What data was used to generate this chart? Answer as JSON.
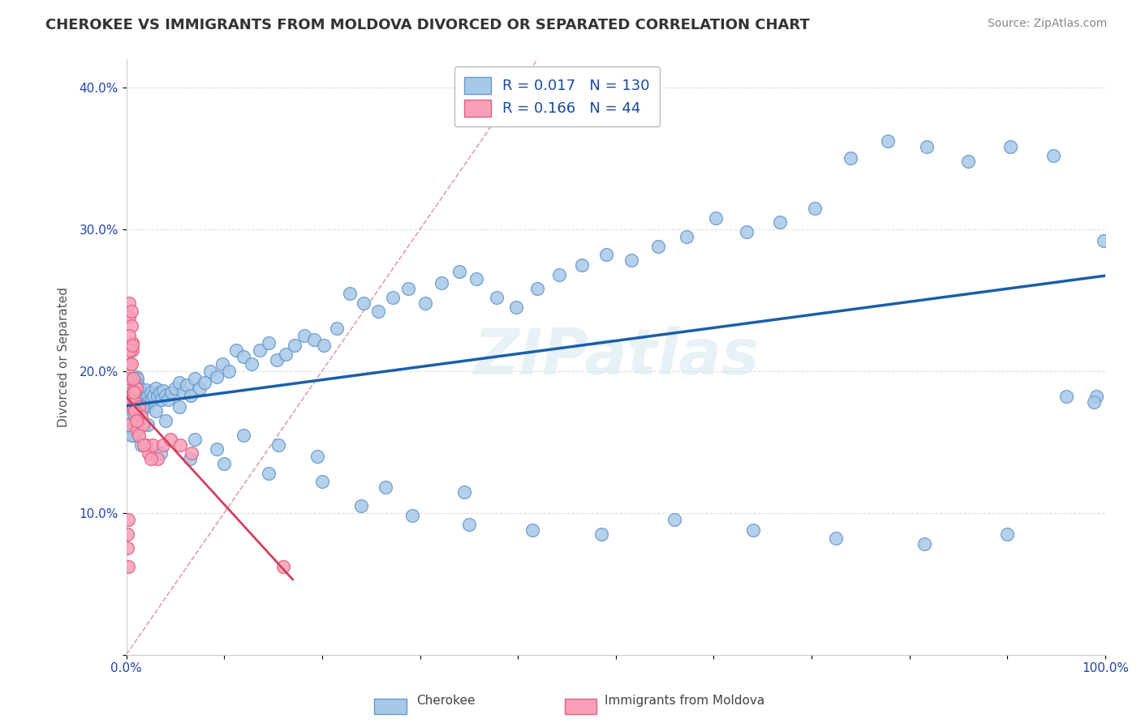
{
  "title": "CHEROKEE VS IMMIGRANTS FROM MOLDOVA DIVORCED OR SEPARATED CORRELATION CHART",
  "source": "Source: ZipAtlas.com",
  "ylabel": "Divorced or Separated",
  "xlim": [
    0.0,
    1.0
  ],
  "ylim": [
    0.0,
    0.42
  ],
  "xticks": [
    0.0,
    0.1,
    0.2,
    0.3,
    0.4,
    0.5,
    0.6,
    0.7,
    0.8,
    0.9,
    1.0
  ],
  "xtick_labels": [
    "0.0%",
    "",
    "",
    "",
    "",
    "",
    "",
    "",
    "",
    "",
    "100.0%"
  ],
  "yticks": [
    0.0,
    0.1,
    0.2,
    0.3,
    0.4
  ],
  "ytick_labels": [
    "",
    "10.0%",
    "20.0%",
    "30.0%",
    "40.0%"
  ],
  "cherokee_R": 0.017,
  "cherokee_N": 130,
  "moldova_R": 0.166,
  "moldova_N": 44,
  "cherokee_color": "#a8c8e8",
  "cherokee_edge": "#6699cc",
  "moldova_color": "#f8a0b8",
  "moldova_edge": "#e06080",
  "cherokee_trend_color": "#1a5fa8",
  "moldova_trend_color": "#d04060",
  "legend_label_cherokee": "Cherokee",
  "legend_label_moldova": "Immigrants from Moldova",
  "watermark": "ZIPatlas",
  "background_color": "#ffffff",
  "grid_color": "#e0e0e0",
  "cherokee_x": [
    0.003,
    0.004,
    0.004,
    0.005,
    0.005,
    0.006,
    0.006,
    0.007,
    0.007,
    0.008,
    0.008,
    0.009,
    0.009,
    0.01,
    0.01,
    0.011,
    0.011,
    0.012,
    0.012,
    0.013,
    0.013,
    0.014,
    0.015,
    0.015,
    0.016,
    0.017,
    0.018,
    0.019,
    0.02,
    0.021,
    0.022,
    0.023,
    0.025,
    0.026,
    0.028,
    0.03,
    0.032,
    0.034,
    0.036,
    0.038,
    0.04,
    0.043,
    0.046,
    0.05,
    0.054,
    0.058,
    0.062,
    0.066,
    0.07,
    0.075,
    0.08,
    0.086,
    0.092,
    0.098,
    0.105,
    0.112,
    0.12,
    0.128,
    0.136,
    0.145,
    0.154,
    0.163,
    0.172,
    0.182,
    0.192,
    0.202,
    0.215,
    0.228,
    0.242,
    0.257,
    0.272,
    0.288,
    0.305,
    0.322,
    0.34,
    0.358,
    0.378,
    0.398,
    0.42,
    0.442,
    0.465,
    0.49,
    0.516,
    0.543,
    0.572,
    0.602,
    0.634,
    0.668,
    0.703,
    0.74,
    0.778,
    0.818,
    0.86,
    0.903,
    0.947,
    0.991,
    0.008,
    0.012,
    0.016,
    0.022,
    0.03,
    0.04,
    0.054,
    0.07,
    0.092,
    0.12,
    0.155,
    0.195,
    0.24,
    0.292,
    0.35,
    0.415,
    0.485,
    0.56,
    0.64,
    0.725,
    0.815,
    0.9,
    0.96,
    0.988,
    0.998,
    0.005,
    0.015,
    0.035,
    0.065,
    0.1,
    0.145,
    0.2,
    0.265,
    0.345
  ],
  "cherokee_y": [
    0.178,
    0.182,
    0.168,
    0.175,
    0.162,
    0.18,
    0.155,
    0.185,
    0.16,
    0.188,
    0.155,
    0.192,
    0.158,
    0.196,
    0.16,
    0.195,
    0.158,
    0.19,
    0.163,
    0.188,
    0.165,
    0.185,
    0.18,
    0.175,
    0.182,
    0.177,
    0.183,
    0.174,
    0.187,
    0.176,
    0.182,
    0.178,
    0.185,
    0.18,
    0.183,
    0.188,
    0.182,
    0.185,
    0.18,
    0.186,
    0.183,
    0.18,
    0.185,
    0.188,
    0.192,
    0.185,
    0.19,
    0.183,
    0.195,
    0.188,
    0.192,
    0.2,
    0.196,
    0.205,
    0.2,
    0.215,
    0.21,
    0.205,
    0.215,
    0.22,
    0.208,
    0.212,
    0.218,
    0.225,
    0.222,
    0.218,
    0.23,
    0.255,
    0.248,
    0.242,
    0.252,
    0.258,
    0.248,
    0.262,
    0.27,
    0.265,
    0.252,
    0.245,
    0.258,
    0.268,
    0.275,
    0.282,
    0.278,
    0.288,
    0.295,
    0.308,
    0.298,
    0.305,
    0.315,
    0.35,
    0.362,
    0.358,
    0.348,
    0.358,
    0.352,
    0.182,
    0.17,
    0.165,
    0.175,
    0.162,
    0.172,
    0.165,
    0.175,
    0.152,
    0.145,
    0.155,
    0.148,
    0.14,
    0.105,
    0.098,
    0.092,
    0.088,
    0.085,
    0.095,
    0.088,
    0.082,
    0.078,
    0.085,
    0.182,
    0.178,
    0.292,
    0.155,
    0.148,
    0.142,
    0.138,
    0.135,
    0.128,
    0.122,
    0.118,
    0.115
  ],
  "moldova_x": [
    0.001,
    0.001,
    0.002,
    0.002,
    0.003,
    0.003,
    0.004,
    0.004,
    0.005,
    0.005,
    0.006,
    0.006,
    0.007,
    0.007,
    0.008,
    0.009,
    0.01,
    0.011,
    0.012,
    0.013,
    0.015,
    0.017,
    0.02,
    0.023,
    0.027,
    0.032,
    0.038,
    0.045,
    0.055,
    0.067,
    0.003,
    0.004,
    0.005,
    0.006,
    0.007,
    0.008,
    0.009,
    0.01,
    0.013,
    0.018,
    0.025,
    0.002,
    0.002,
    0.16
  ],
  "moldova_y": [
    0.085,
    0.075,
    0.18,
    0.162,
    0.248,
    0.238,
    0.205,
    0.195,
    0.242,
    0.232,
    0.22,
    0.215,
    0.182,
    0.175,
    0.188,
    0.178,
    0.188,
    0.158,
    0.165,
    0.175,
    0.168,
    0.162,
    0.148,
    0.142,
    0.148,
    0.138,
    0.148,
    0.152,
    0.148,
    0.142,
    0.225,
    0.215,
    0.205,
    0.218,
    0.195,
    0.185,
    0.172,
    0.165,
    0.155,
    0.148,
    0.138,
    0.095,
    0.062,
    0.062
  ]
}
